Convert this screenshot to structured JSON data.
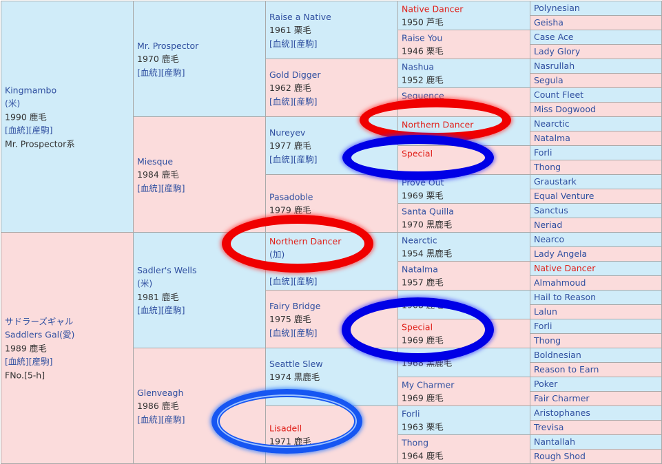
{
  "pedigree": {
    "gen1": [
      {
        "name": "Kingmambo",
        "lines": [
          "(米)",
          "1990 鹿毛",
          "[血統][産駒]",
          "Mr. Prospector系"
        ],
        "side": "sire"
      },
      {
        "name": "サドラーズギャル",
        "lines": [
          "Saddlers Gal(愛)",
          "1989 鹿毛",
          "[血統][産駒]",
          "FNo.[5-h]"
        ],
        "side": "dam"
      }
    ],
    "gen2": [
      {
        "name": "Mr. Prospector",
        "lines": [
          "1970 鹿毛",
          "[血統][産駒]"
        ],
        "side": "sire"
      },
      {
        "name": "Miesque",
        "lines": [
          "1984 鹿毛",
          "[血統][産駒]"
        ],
        "side": "dam"
      },
      {
        "name": "Sadler's Wells",
        "lines": [
          "(米)",
          "1981 鹿毛",
          "[血統][産駒]"
        ],
        "side": "sire"
      },
      {
        "name": "Glenveagh",
        "lines": [
          "1986 鹿毛",
          "[血統][産駒]"
        ],
        "side": "dam"
      }
    ],
    "gen3": [
      {
        "name": "Raise a Native",
        "lines": [
          "1961 栗毛",
          "[血統][産駒]"
        ],
        "side": "sire",
        "red": false
      },
      {
        "name": "Gold Digger",
        "lines": [
          "1962 鹿毛",
          "[血統][産駒]"
        ],
        "side": "dam",
        "red": false
      },
      {
        "name": "Nureyev",
        "lines": [
          "1977 鹿毛",
          "[血統][産駒]"
        ],
        "side": "sire",
        "red": false
      },
      {
        "name": "Pasadoble",
        "lines": [
          "1979 鹿毛"
        ],
        "side": "dam",
        "red": false
      },
      {
        "name": "Northern Dancer",
        "lines": [
          "(加)",
          "",
          "[血統][産駒]"
        ],
        "side": "sire",
        "red": true
      },
      {
        "name": "Fairy Bridge",
        "lines": [
          "1975 鹿毛",
          "[血統][産駒]"
        ],
        "side": "dam",
        "red": false
      },
      {
        "name": "Seattle Slew",
        "lines": [
          "1974 黒鹿毛",
          ""
        ],
        "side": "sire",
        "red": false
      },
      {
        "name": "Lisadell",
        "lines": [
          "1971 鹿毛"
        ],
        "side": "dam",
        "red": true
      }
    ],
    "gen4": [
      {
        "name": "Native Dancer",
        "year": "1950 芦毛",
        "side": "sire",
        "red": true
      },
      {
        "name": "Raise You",
        "year": "1946 栗毛",
        "side": "dam",
        "red": false
      },
      {
        "name": "Nashua",
        "year": "1952 鹿毛",
        "side": "sire",
        "red": false
      },
      {
        "name": "Sequence",
        "year": "",
        "side": "dam",
        "red": false
      },
      {
        "name": "Northern Dancer",
        "year": "",
        "side": "sire",
        "red": true
      },
      {
        "name": "Special",
        "year": "",
        "side": "dam",
        "red": true
      },
      {
        "name": "Prove Out",
        "year": "1969 栗毛",
        "side": "sire",
        "red": false
      },
      {
        "name": "Santa Quilla",
        "year": "1970 黒鹿毛",
        "side": "dam",
        "red": false
      },
      {
        "name": "Nearctic",
        "year": "1954 黒鹿毛",
        "side": "sire",
        "red": false
      },
      {
        "name": "Natalma",
        "year": "1957 鹿毛",
        "side": "dam",
        "red": false
      },
      {
        "name": "",
        "year": "1968 鹿毛",
        "side": "sire",
        "red": false
      },
      {
        "name": "Special",
        "year": "1969 鹿毛",
        "side": "dam",
        "red": true
      },
      {
        "name": "",
        "year": "1968 黒鹿毛",
        "side": "sire",
        "red": false
      },
      {
        "name": "My Charmer",
        "year": "1969 鹿毛",
        "side": "dam",
        "red": false
      },
      {
        "name": "Forli",
        "year": "1963 栗毛",
        "side": "sire",
        "red": false
      },
      {
        "name": "Thong",
        "year": "1964 鹿毛",
        "side": "dam",
        "red": false
      }
    ],
    "gen5": [
      {
        "name": "Polynesian",
        "red": false
      },
      {
        "name": "Geisha",
        "red": false
      },
      {
        "name": "Case Ace",
        "red": false
      },
      {
        "name": "Lady Glory",
        "red": false
      },
      {
        "name": "Nasrullah",
        "red": false
      },
      {
        "name": "Segula",
        "red": false
      },
      {
        "name": "Count Fleet",
        "red": false
      },
      {
        "name": "Miss Dogwood",
        "red": false
      },
      {
        "name": "Nearctic",
        "red": false
      },
      {
        "name": "Natalma",
        "red": false
      },
      {
        "name": "Forli",
        "red": false
      },
      {
        "name": "Thong",
        "red": false
      },
      {
        "name": "Graustark",
        "red": false
      },
      {
        "name": "Equal Venture",
        "red": false
      },
      {
        "name": "Sanctus",
        "red": false
      },
      {
        "name": "Neriad",
        "red": false
      },
      {
        "name": "Nearco",
        "red": false
      },
      {
        "name": "Lady Angela",
        "red": false
      },
      {
        "name": "Native Dancer",
        "red": true
      },
      {
        "name": "Almahmoud",
        "red": false
      },
      {
        "name": "Hail to Reason",
        "red": false
      },
      {
        "name": "Lalun",
        "red": false
      },
      {
        "name": "Forli",
        "red": false
      },
      {
        "name": "Thong",
        "red": false
      },
      {
        "name": "Boldnesian",
        "red": false
      },
      {
        "name": "Reason to Earn",
        "red": false
      },
      {
        "name": "Poker",
        "red": false
      },
      {
        "name": "Fair Charmer",
        "red": false
      },
      {
        "name": "Aristophanes",
        "red": false
      },
      {
        "name": "Trevisa",
        "red": false
      },
      {
        "name": "Nantallah",
        "red": false
      },
      {
        "name": "Rough Shod",
        "red": false
      }
    ]
  },
  "colors": {
    "sire_bg": "#d0ecf9",
    "dam_bg": "#fbdcdc",
    "link": "#2f4fa0",
    "highlight": "#e0201a",
    "ring_red": "#f00000",
    "ring_blue": "#0000e6",
    "ring_lightblue": "#1656f2"
  }
}
